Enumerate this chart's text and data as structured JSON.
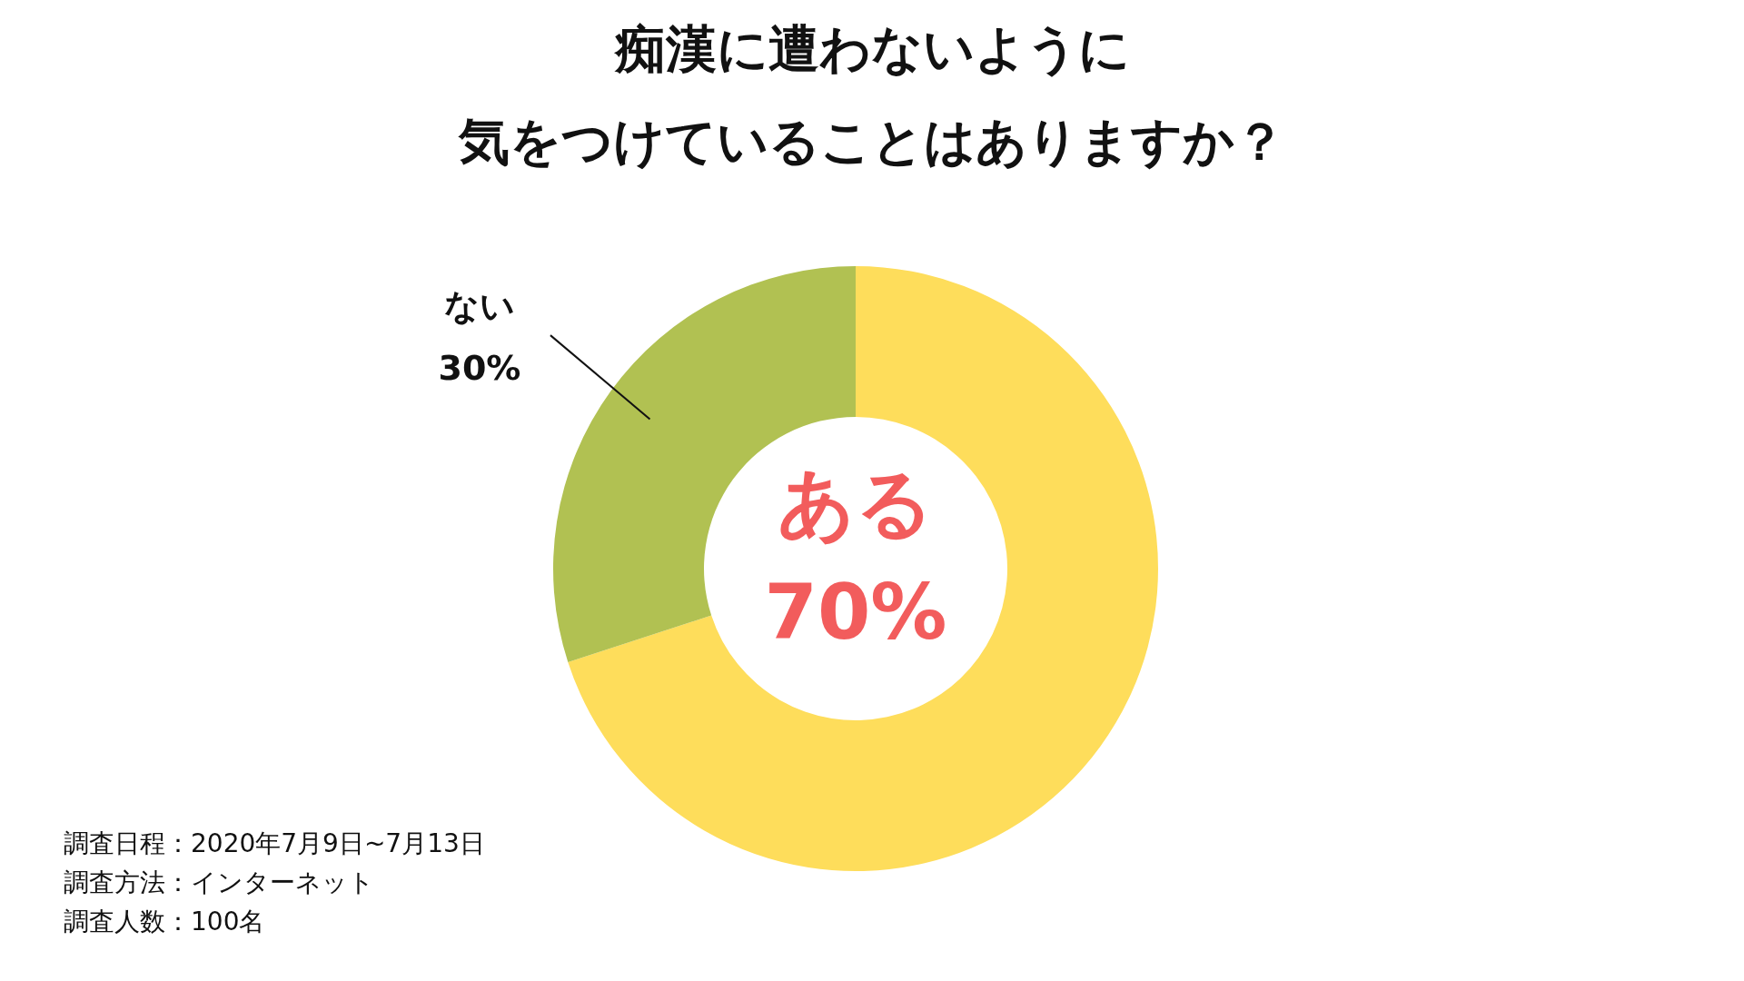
{
  "chart_data": {
    "type": "donut",
    "title": "痴漢に遭わないように",
    "subtitle": "気をつけていることはありますか？",
    "categories": [
      "ある",
      "ない"
    ],
    "values": [
      70,
      30
    ],
    "colors": [
      "#fedd5b",
      "#b1c152"
    ],
    "value_labels": [
      "70%",
      "30%"
    ],
    "annotations": [
      "調査日程：2020年7月9日~7月13日",
      "調査方法：インターネット",
      "調査人数：100名"
    ]
  }
}
